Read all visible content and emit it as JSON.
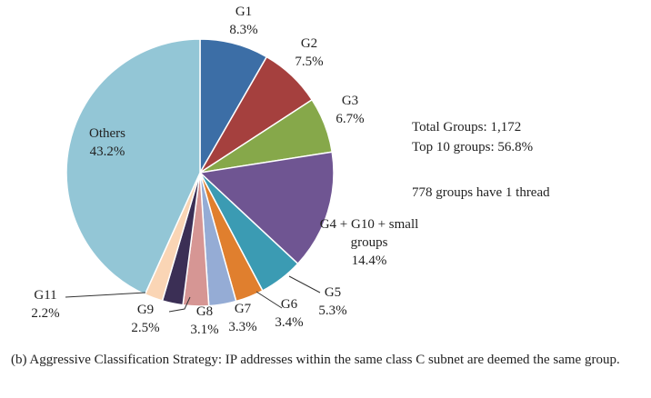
{
  "chart_data": {
    "type": "pie",
    "categories": [
      "G1",
      "G2",
      "G3",
      "G4 + G10 + small groups",
      "G5",
      "G6",
      "G7",
      "G8",
      "G9",
      "G11",
      "Others"
    ],
    "values": [
      8.3,
      7.5,
      6.7,
      14.4,
      5.3,
      3.4,
      3.3,
      3.1,
      2.5,
      2.2,
      43.2
    ],
    "value_labels": [
      "8.3%",
      "7.5%",
      "6.7%",
      "14.4%",
      "5.3%",
      "3.4%",
      "3.3%",
      "3.1%",
      "2.5%",
      "2.2%",
      "43.2%"
    ],
    "colors": [
      "#3c6ea6",
      "#a5403e",
      "#86a84a",
      "#6f5592",
      "#3b9bb3",
      "#e07f2e",
      "#95acd5",
      "#d69694",
      "#3b2f55",
      "#fad5b5",
      "#93c6d6"
    ],
    "annotations": [
      "Total Groups: 1,172",
      "Top 10 groups: 56.8%",
      "778 groups have 1 thread"
    ]
  },
  "caption": "(b) Aggressive Classification Strategy: IP addresses within the same class C subnet are deemed the same group."
}
